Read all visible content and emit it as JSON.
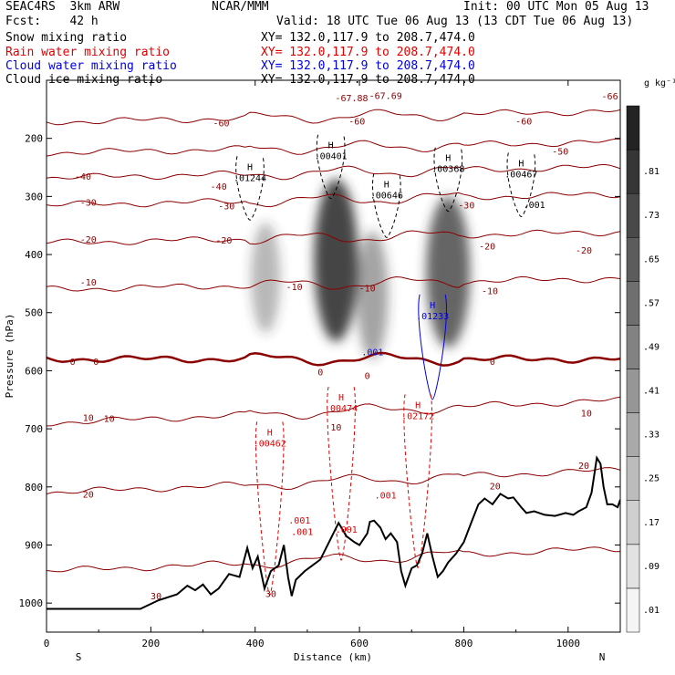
{
  "header": {
    "experiment": "SEAC4RS  3km ARW",
    "forecast": "Fcst:    42 h",
    "center": "NCAR/MMM",
    "init": "Init: 00 UTC Mon 05 Aug 13",
    "valid": "Valid: 18 UTC Tue 06 Aug 13 (13 CDT Tue 06 Aug 13)",
    "fields": [
      {
        "name": "Snow mixing ratio",
        "xy": "XY= 132.0,117.9 to 208.7,474.0",
        "color": "#000000"
      },
      {
        "name": "Rain water mixing ratio",
        "xy": "XY= 132.0,117.9 to 208.7,474.0",
        "color": "#e00000"
      },
      {
        "name": "Cloud water mixing ratio",
        "xy": "XY= 132.0,117.9 to 208.7,474.0",
        "color": "#0000e0"
      },
      {
        "name": "Cloud ice mixing ratio",
        "xy": "XY= 132.0,117.9 to 208.7,474.0",
        "color": "#000000"
      }
    ]
  },
  "chart_data": {
    "type": "contour-cross-section",
    "xlabel": "Distance (km)",
    "ylabel": "Pressure (hPa)",
    "xlim": [
      0,
      1100
    ],
    "ylim": [
      1050,
      100
    ],
    "x_ticks": [
      0,
      200,
      400,
      600,
      800,
      1000
    ],
    "y_ticks": [
      200,
      300,
      400,
      500,
      600,
      700,
      800,
      900,
      1000
    ],
    "x_end_labels": {
      "left": "S",
      "right": "N"
    },
    "colorbar": {
      "units": "g kg⁻¹",
      "levels": [
        0.01,
        0.09,
        0.17,
        0.25,
        0.33,
        0.41,
        0.49,
        0.57,
        0.65,
        0.73,
        0.81
      ],
      "labels": [
        ".01",
        ".09",
        ".17",
        ".25",
        ".33",
        ".41",
        ".49",
        ".57",
        ".65",
        ".73",
        ".81"
      ]
    },
    "snow_shading": [
      {
        "x": 420,
        "p": 440,
        "rx": 28,
        "rp": 95,
        "peak": 0.35
      },
      {
        "x": 555,
        "p": 410,
        "rx": 42,
        "rp": 140,
        "peak": 0.9
      },
      {
        "x": 625,
        "p": 470,
        "rx": 30,
        "rp": 110,
        "peak": 0.45
      },
      {
        "x": 770,
        "p": 430,
        "rx": 42,
        "rp": 130,
        "peak": 0.75
      }
    ],
    "temperature_contours": [
      {
        "value": -60,
        "p": 172
      },
      {
        "value": -50,
        "p": 225
      },
      {
        "value": -40,
        "p": 268
      },
      {
        "value": -30,
        "p": 315
      },
      {
        "value": -20,
        "p": 380
      },
      {
        "value": -10,
        "p": 460
      },
      {
        "value": 0,
        "p": 580
      },
      {
        "value": 10,
        "p": 690
      },
      {
        "value": 20,
        "p": 810
      },
      {
        "value": 30,
        "p": 945
      }
    ],
    "temperature_labels": [
      {
        "text": "-67.88",
        "x": 585,
        "p": 130
      },
      {
        "text": "-67.69",
        "x": 650,
        "p": 126
      },
      {
        "text": "-66",
        "x": 1080,
        "p": 127
      },
      {
        "text": "-60",
        "x": 335,
        "p": 173
      },
      {
        "text": "-60",
        "x": 595,
        "p": 170
      },
      {
        "text": "-60",
        "x": 915,
        "p": 170
      },
      {
        "text": "-50",
        "x": 985,
        "p": 222
      },
      {
        "text": "-40",
        "x": 70,
        "p": 265
      },
      {
        "text": "-40",
        "x": 330,
        "p": 282
      },
      {
        "text": "-30",
        "x": 80,
        "p": 310
      },
      {
        "text": "-30",
        "x": 345,
        "p": 316
      },
      {
        "text": "-30",
        "x": 805,
        "p": 314
      },
      {
        "text": "-20",
        "x": 80,
        "p": 373
      },
      {
        "text": "-20",
        "x": 340,
        "p": 375
      },
      {
        "text": "-20",
        "x": 845,
        "p": 385
      },
      {
        "text": "-20",
        "x": 1030,
        "p": 392
      },
      {
        "text": "-10",
        "x": 80,
        "p": 447
      },
      {
        "text": "-10",
        "x": 475,
        "p": 455
      },
      {
        "text": "-10",
        "x": 615,
        "p": 457
      },
      {
        "text": "-10",
        "x": 850,
        "p": 462
      },
      {
        "text": "0",
        "x": 50,
        "p": 584
      },
      {
        "text": "0",
        "x": 95,
        "p": 584
      },
      {
        "text": "0",
        "x": 525,
        "p": 602
      },
      {
        "text": "0",
        "x": 615,
        "p": 608
      },
      {
        "text": "0",
        "x": 855,
        "p": 584
      },
      {
        "text": "10",
        "x": 80,
        "p": 680
      },
      {
        "text": "10",
        "x": 120,
        "p": 682
      },
      {
        "text": "10",
        "x": 555,
        "p": 697
      },
      {
        "text": "10",
        "x": 1035,
        "p": 672
      },
      {
        "text": "20",
        "x": 80,
        "p": 812
      },
      {
        "text": "20",
        "x": 860,
        "p": 798
      },
      {
        "text": "20",
        "x": 1030,
        "p": 763
      },
      {
        "text": "30",
        "x": 210,
        "p": 987
      },
      {
        "text": "30",
        "x": 430,
        "p": 983
      }
    ],
    "hydrometeor_maxima": [
      {
        "field": "Cloud ice mixing ratio",
        "text": "H",
        "value": ".01244",
        "x": 390,
        "p": 270
      },
      {
        "field": "Cloud ice mixing ratio",
        "text": "H",
        "value": ".00401",
        "x": 545,
        "p": 233
      },
      {
        "field": "Cloud ice mixing ratio",
        "text": "H",
        "value": ".00646",
        "x": 652,
        "p": 300
      },
      {
        "field": "Cloud ice mixing ratio",
        "text": "H",
        "value": ".00368",
        "x": 770,
        "p": 255
      },
      {
        "field": "Cloud ice mixing ratio",
        "text": "H",
        "value": ".00467",
        "x": 910,
        "p": 264
      },
      {
        "field": "Cloud ice mixing ratio",
        "text": "",
        "value": ".001",
        "x": 935,
        "p": 317
      },
      {
        "field": "Cloud water mixing ratio",
        "text": "H",
        "value": ".01233",
        "x": 740,
        "p": 508
      },
      {
        "field": "Cloud water mixing ratio",
        "text": "",
        "value": ".001",
        "x": 625,
        "p": 570
      },
      {
        "field": "Rain water mixing ratio",
        "text": "H",
        "value": ".00474",
        "x": 565,
        "p": 667
      },
      {
        "field": "Rain water mixing ratio",
        "text": "H",
        "value": ".02172",
        "x": 712,
        "p": 680
      },
      {
        "field": "Rain water mixing ratio",
        "text": "H",
        "value": ".00462",
        "x": 428,
        "p": 727
      },
      {
        "field": "Rain water mixing ratio",
        "text": "",
        "value": ".001",
        "x": 650,
        "p": 817
      },
      {
        "field": "Rain water mixing ratio",
        "text": "",
        "value": ".001",
        "x": 485,
        "p": 860
      },
      {
        "field": "Rain water mixing ratio",
        "text": "",
        "value": ".001",
        "x": 490,
        "p": 880
      },
      {
        "field": "Rain water mixing ratio",
        "text": "",
        "value": ".001",
        "x": 575,
        "p": 876
      }
    ],
    "terrain": [
      [
        0,
        1010
      ],
      [
        60,
        1010
      ],
      [
        180,
        1010
      ],
      [
        215,
        995
      ],
      [
        250,
        985
      ],
      [
        270,
        970
      ],
      [
        285,
        978
      ],
      [
        300,
        968
      ],
      [
        315,
        985
      ],
      [
        330,
        975
      ],
      [
        350,
        950
      ],
      [
        370,
        955
      ],
      [
        385,
        905
      ],
      [
        395,
        940
      ],
      [
        405,
        920
      ],
      [
        418,
        975
      ],
      [
        430,
        945
      ],
      [
        445,
        935
      ],
      [
        455,
        900
      ],
      [
        463,
        955
      ],
      [
        470,
        988
      ],
      [
        478,
        960
      ],
      [
        495,
        945
      ],
      [
        510,
        935
      ],
      [
        525,
        925
      ],
      [
        540,
        898
      ],
      [
        550,
        880
      ],
      [
        560,
        862
      ],
      [
        575,
        885
      ],
      [
        590,
        895
      ],
      [
        600,
        900
      ],
      [
        615,
        880
      ],
      [
        620,
        860
      ],
      [
        628,
        858
      ],
      [
        640,
        870
      ],
      [
        650,
        890
      ],
      [
        660,
        880
      ],
      [
        672,
        895
      ],
      [
        680,
        945
      ],
      [
        688,
        970
      ],
      [
        700,
        940
      ],
      [
        710,
        935
      ],
      [
        720,
        915
      ],
      [
        730,
        880
      ],
      [
        740,
        920
      ],
      [
        750,
        955
      ],
      [
        760,
        945
      ],
      [
        770,
        930
      ],
      [
        785,
        915
      ],
      [
        800,
        895
      ],
      [
        815,
        860
      ],
      [
        828,
        830
      ],
      [
        840,
        820
      ],
      [
        855,
        830
      ],
      [
        870,
        812
      ],
      [
        885,
        820
      ],
      [
        895,
        818
      ],
      [
        910,
        835
      ],
      [
        920,
        845
      ],
      [
        935,
        842
      ],
      [
        955,
        848
      ],
      [
        975,
        850
      ],
      [
        995,
        845
      ],
      [
        1010,
        848
      ],
      [
        1020,
        842
      ],
      [
        1035,
        835
      ],
      [
        1045,
        810
      ],
      [
        1050,
        780
      ],
      [
        1055,
        750
      ],
      [
        1062,
        760
      ],
      [
        1068,
        800
      ],
      [
        1075,
        830
      ],
      [
        1085,
        830
      ],
      [
        1095,
        835
      ],
      [
        1100,
        822
      ]
    ]
  }
}
